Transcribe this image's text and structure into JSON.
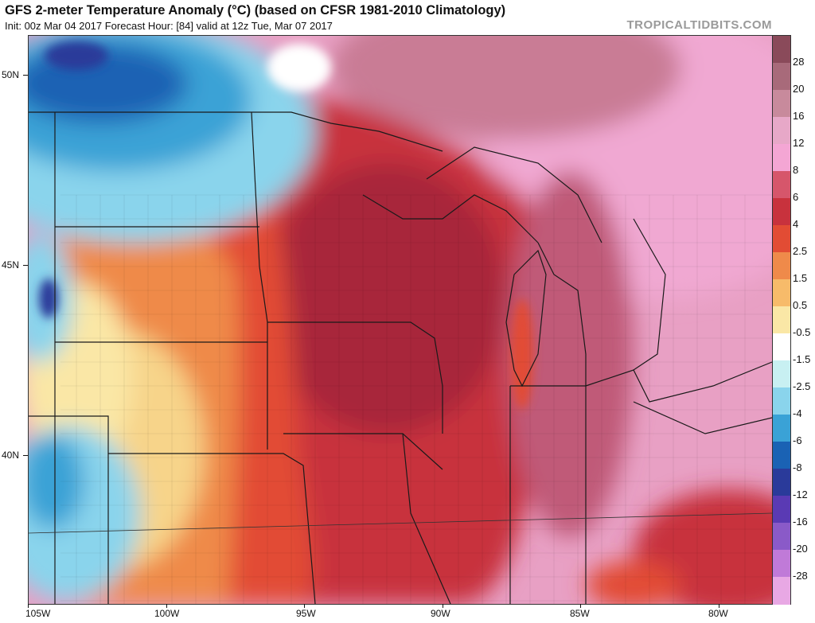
{
  "header": {
    "title": "GFS 2-meter Temperature Anomaly (°C) (based on CFSR 1981-2010 Climatology)",
    "subtitle": "Init: 00z Mar 04 2017   Forecast Hour: [84]   valid at 12z Tue, Mar 07 2017",
    "brand": "TROPICALTIDBITS.COM"
  },
  "axes": {
    "lat_labels": [
      "50N",
      "45N",
      "40N"
    ],
    "lon_labels": [
      "105W",
      "100W",
      "95W",
      "90W",
      "85W",
      "80W"
    ]
  },
  "colorbar": {
    "labels": [
      "28",
      "20",
      "16",
      "12",
      "8",
      "6",
      "4",
      "2.5",
      "1.5",
      "0.5",
      "-0.5",
      "-1.5",
      "-2.5",
      "-4",
      "-6",
      "-8",
      "-12",
      "-16",
      "-20",
      "-28"
    ],
    "colors": [
      "#8a4a5a",
      "#a86a7a",
      "#c88a9c",
      "#e7a8c8",
      "#f4a6d4",
      "#d6566b",
      "#c8323d",
      "#e24c34",
      "#ef8a4a",
      "#f7bb6a",
      "#fae7a6",
      "#ffffff",
      "#c8f0f2",
      "#8ad4ec",
      "#3aa2d6",
      "#1a62b4",
      "#2a3a9a",
      "#5a3ab4",
      "#8a5ac8",
      "#c07ad8",
      "#e8a8e4"
    ]
  },
  "map": {
    "field": "2-meter temperature anomaly",
    "region": "Upper Midwest / Great Lakes"
  }
}
